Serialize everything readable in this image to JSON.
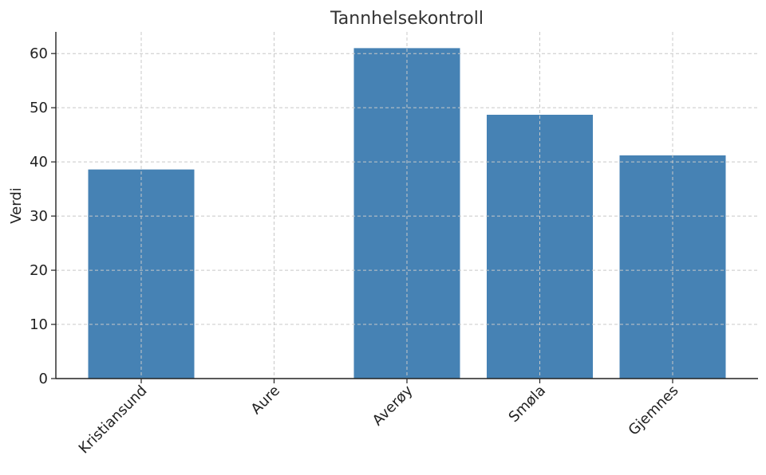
{
  "chart_data": {
    "type": "bar",
    "title": "Tannhelsekontroll",
    "xlabel": "",
    "ylabel": "Verdi",
    "categories": [
      "Kristiansund",
      "Aure",
      "Averøy",
      "Smøla",
      "Gjemnes"
    ],
    "values": [
      38.6,
      0,
      61.0,
      48.7,
      41.2
    ],
    "ylim": [
      0,
      64
    ],
    "yticks": [
      0,
      10,
      20,
      30,
      40,
      50,
      60
    ],
    "grid": true,
    "bar_color": "#4682b4"
  }
}
